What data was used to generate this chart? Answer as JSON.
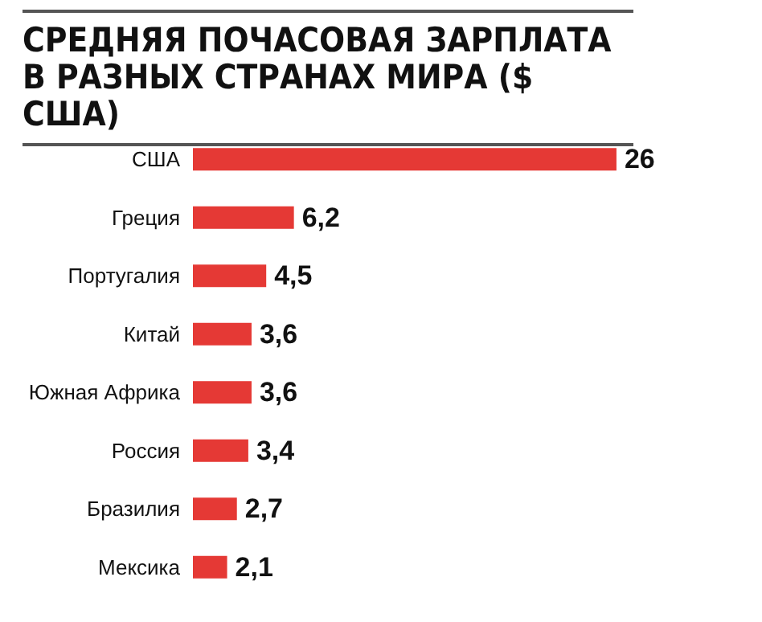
{
  "chart_data": {
    "type": "bar",
    "orientation": "horizontal",
    "title": "СРЕДНЯЯ ПОЧАСОВАЯ ЗАРПЛАТА В РАЗНЫХ СТРАНАХ МИРА ($ США)",
    "categories": [
      "США",
      "Греция",
      "Португалия",
      "Китай",
      "Южная Африка",
      "Россия",
      "Бразилия",
      "Мексика"
    ],
    "values": [
      26,
      6.2,
      4.5,
      3.6,
      3.6,
      3.4,
      2.7,
      2.1
    ],
    "value_labels": [
      "26",
      "6,2",
      "4,5",
      "3,6",
      "3,6",
      "3,4",
      "2,7",
      "2,1"
    ],
    "color": "#e53935"
  }
}
